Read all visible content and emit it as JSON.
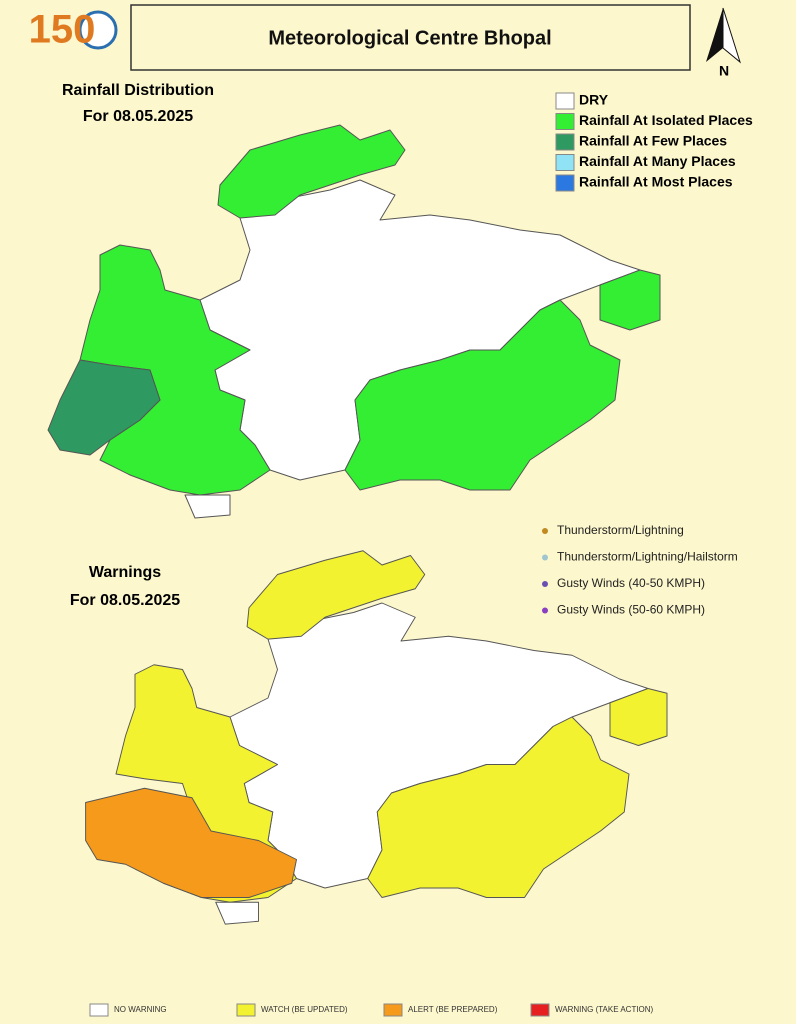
{
  "logo": "150",
  "header": {
    "title": "Meteorological Centre Bhopal",
    "north": "N"
  },
  "rainfall": {
    "title": "Rainfall Distribution",
    "date": "For 08.05.2025",
    "legend": [
      {
        "label": "DRY",
        "color": "#ffffff"
      },
      {
        "label": "Rainfall At Isolated Places",
        "color": "#33ee33"
      },
      {
        "label": "Rainfall At Few Places",
        "color": "#2e9960"
      },
      {
        "label": "Rainfall At Many Places",
        "color": "#8fe3f5"
      },
      {
        "label": "Rainfall At Most Places",
        "color": "#2a78e0"
      }
    ]
  },
  "warnings": {
    "title": "Warnings",
    "date": "For 08.05.2025",
    "symbols": [
      "Thunderstorm/Lightning",
      "Thunderstorm/Lightning/Hailstorm",
      "Gusty Winds (40-50 KMPH)",
      "Gusty Winds (50-60 KMPH)"
    ],
    "legend": [
      {
        "label": "NO WARNING",
        "color": "#ffffff"
      },
      {
        "label": "WATCH (BE UPDATED)",
        "color": "#f2f230"
      },
      {
        "label": "ALERT (BE PREPARED)",
        "color": "#f59a1a"
      },
      {
        "label": "WARNING (TAKE ACTION)",
        "color": "#e62020"
      }
    ]
  }
}
